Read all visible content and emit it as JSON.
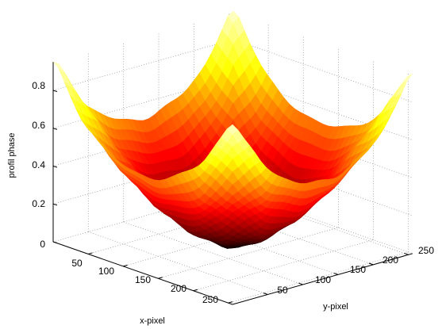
{
  "chart_data": {
    "type": "surface",
    "title": "",
    "xlabel": "x-pixel",
    "ylabel": "y-pixel",
    "zlabel": "profil phase",
    "xlim": [
      0,
      256
    ],
    "ylim": [
      0,
      256
    ],
    "zlim": [
      0,
      0.95
    ],
    "x_ticks": [
      "50",
      "100",
      "150",
      "200",
      "250"
    ],
    "y_ticks": [
      "50",
      "100",
      "150",
      "200",
      "250"
    ],
    "z_ticks": [
      "0",
      "0.2",
      "0.4",
      "0.6",
      "0.8"
    ],
    "grid": true,
    "colormap": "hot",
    "surface": {
      "min_value": 0.0,
      "corner_values": [
        0.9,
        0.9,
        0.9,
        0.9
      ],
      "edge_midpoint_value": 0.5,
      "description_shape": "radial bowl centered at (128,128)"
    }
  },
  "colors": {
    "dark": "#000000",
    "red": "#e11a00",
    "orange": "#ff7a00",
    "yellow": "#ffff40",
    "light": "#ffffc8"
  }
}
